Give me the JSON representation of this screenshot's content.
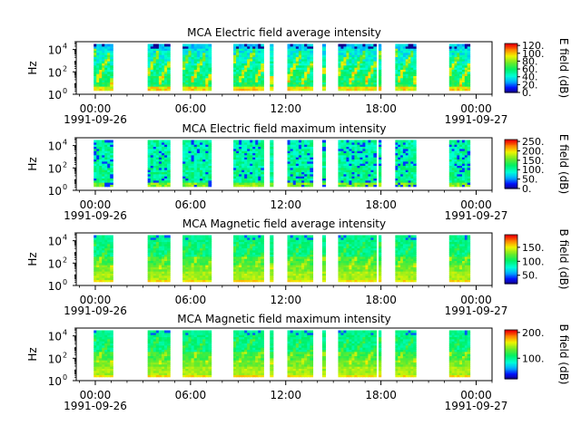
{
  "chart_data": [
    {
      "type": "heatmap",
      "title": "MCA  Electric field average intensity",
      "ylabel": "Hz",
      "ylim_log10": [
        0,
        4.7
      ],
      "y_ticks": [
        {
          "base": "10",
          "exp": "0"
        },
        {
          "base": "10",
          "exp": "2"
        },
        {
          "base": "10",
          "exp": "4"
        }
      ],
      "x_ticks": [
        "00:00",
        "06:00",
        "12:00",
        "18:00",
        "00:00"
      ],
      "x_tick_hours": [
        0,
        6,
        12,
        18,
        24
      ],
      "x_date_labels": [
        "1991-09-26",
        "1991-09-27"
      ],
      "xlim_hours": [
        -1.2,
        25
      ],
      "colorbar_label": "E field (dB)",
      "colorbar_ticks": [
        "0.",
        "20.",
        "40.",
        "60.",
        "80.",
        "100.",
        "120."
      ],
      "colorbar_range": [
        0,
        125
      ],
      "data_hour_ranges": [
        [
          -0.1,
          1.1
        ],
        [
          3.3,
          4.7
        ],
        [
          5.5,
          7.3
        ],
        [
          8.7,
          10.6
        ],
        [
          11.0,
          11.2
        ],
        [
          12.1,
          13.7
        ],
        [
          14.3,
          14.5
        ],
        [
          15.3,
          17.7
        ],
        [
          17.85,
          18.0
        ],
        [
          18.9,
          20.2
        ],
        [
          22.3,
          23.6
        ]
      ],
      "palette": "avg"
    },
    {
      "type": "heatmap",
      "title": "MCA  Electric field maximum intensity",
      "ylabel": "Hz",
      "ylim_log10": [
        0,
        4.7
      ],
      "y_ticks": [
        {
          "base": "10",
          "exp": "0"
        },
        {
          "base": "10",
          "exp": "2"
        },
        {
          "base": "10",
          "exp": "4"
        }
      ],
      "x_ticks": [
        "00:00",
        "06:00",
        "12:00",
        "18:00",
        "00:00"
      ],
      "x_tick_hours": [
        0,
        6,
        12,
        18,
        24
      ],
      "x_date_labels": [
        "1991-09-26",
        "1991-09-27"
      ],
      "xlim_hours": [
        -1.2,
        25
      ],
      "colorbar_label": "E field (dB)",
      "colorbar_ticks": [
        "0.",
        "50.",
        "100.",
        "150.",
        "200.",
        "250."
      ],
      "colorbar_range": [
        0,
        260
      ],
      "data_hour_ranges": [
        [
          -0.1,
          1.1
        ],
        [
          3.3,
          4.7
        ],
        [
          5.5,
          7.3
        ],
        [
          8.7,
          10.6
        ],
        [
          11.0,
          11.2
        ],
        [
          12.1,
          13.7
        ],
        [
          14.3,
          14.5
        ],
        [
          15.3,
          17.7
        ],
        [
          17.85,
          18.0
        ],
        [
          18.9,
          20.2
        ],
        [
          22.3,
          23.6
        ]
      ],
      "palette": "max"
    },
    {
      "type": "heatmap",
      "title": "MCA  Magnetic field average intensity",
      "ylabel": "Hz",
      "ylim_log10": [
        0,
        4.7
      ],
      "y_ticks": [
        {
          "base": "10",
          "exp": "0"
        },
        {
          "base": "10",
          "exp": "2"
        },
        {
          "base": "10",
          "exp": "4"
        }
      ],
      "x_ticks": [
        "00:00",
        "06:00",
        "12:00",
        "18:00",
        "00:00"
      ],
      "x_tick_hours": [
        0,
        6,
        12,
        18,
        24
      ],
      "x_date_labels": [
        "1991-09-26",
        "1991-09-27"
      ],
      "xlim_hours": [
        -1.2,
        25
      ],
      "colorbar_label": "B field (dB)",
      "colorbar_ticks": [
        "50.",
        "100.",
        "150."
      ],
      "colorbar_range": [
        20,
        195
      ],
      "data_hour_ranges": [
        [
          -0.1,
          1.1
        ],
        [
          3.3,
          4.7
        ],
        [
          5.5,
          7.3
        ],
        [
          8.7,
          10.6
        ],
        [
          11.0,
          11.2
        ],
        [
          12.1,
          13.7
        ],
        [
          14.3,
          14.5
        ],
        [
          15.3,
          17.7
        ],
        [
          17.85,
          18.0
        ],
        [
          18.9,
          20.2
        ],
        [
          22.3,
          23.6
        ]
      ],
      "palette": "mag"
    },
    {
      "type": "heatmap",
      "title": "MCA  Magnetic field maximum intensity",
      "ylabel": "Hz",
      "ylim_log10": [
        0,
        4.7
      ],
      "y_ticks": [
        {
          "base": "10",
          "exp": "0"
        },
        {
          "base": "10",
          "exp": "2"
        },
        {
          "base": "10",
          "exp": "4"
        }
      ],
      "x_ticks": [
        "00:00",
        "06:00",
        "12:00",
        "18:00",
        "00:00"
      ],
      "x_tick_hours": [
        0,
        6,
        12,
        18,
        24
      ],
      "x_date_labels": [
        "1991-09-26",
        "1991-09-27"
      ],
      "xlim_hours": [
        -1.2,
        25
      ],
      "colorbar_label": "B field (dB)",
      "colorbar_ticks": [
        "100.",
        "200."
      ],
      "colorbar_range": [
        20,
        210
      ],
      "data_hour_ranges": [
        [
          -0.1,
          1.1
        ],
        [
          3.3,
          4.7
        ],
        [
          5.5,
          7.3
        ],
        [
          8.7,
          10.6
        ],
        [
          11.0,
          11.2
        ],
        [
          12.1,
          13.7
        ],
        [
          14.3,
          14.5
        ],
        [
          15.3,
          17.7
        ],
        [
          17.85,
          18.0
        ],
        [
          18.9,
          20.2
        ],
        [
          22.3,
          23.6
        ]
      ],
      "palette": "mag"
    }
  ]
}
